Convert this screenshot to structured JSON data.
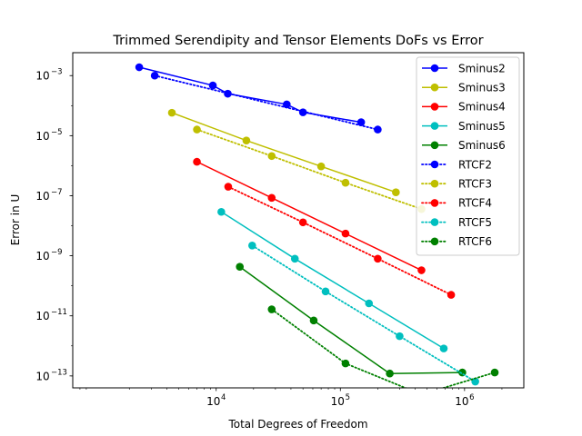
{
  "chart_data": {
    "type": "line",
    "title": "Trimmed Serendipity and Tensor Elements DoFs vs Error",
    "xlabel": "Total Degrees of Freedom",
    "ylabel": "Error in U",
    "xscale": "log",
    "yscale": "log",
    "xlim": [
      700,
      3000000
    ],
    "ylim": [
      4e-14,
      0.0058
    ],
    "xticks": [
      {
        "value": 10000,
        "base": "10",
        "exp": "4"
      },
      {
        "value": 100000,
        "base": "10",
        "exp": "5"
      },
      {
        "value": 1000000,
        "base": "10",
        "exp": "6"
      }
    ],
    "yticks": [
      {
        "value": 0.001,
        "base": "10",
        "exp": "−3"
      },
      {
        "value": 1e-05,
        "base": "10",
        "exp": "−5"
      },
      {
        "value": 1e-07,
        "base": "10",
        "exp": "−7"
      },
      {
        "value": 1e-09,
        "base": "10",
        "exp": "−9"
      },
      {
        "value": 1e-11,
        "base": "10",
        "exp": "−11"
      },
      {
        "value": 1e-13,
        "base": "10",
        "exp": "−13"
      }
    ],
    "grid": false,
    "legend_position": "top-right",
    "series": [
      {
        "name": "Sminus2",
        "color": "#0000ff",
        "style": "solid",
        "x": [
          2400,
          9400,
          12400,
          37000,
          50000,
          147000
        ],
        "y": [
          0.0019,
          0.00047,
          0.00025,
          0.00011,
          6e-05,
          2.8e-05
        ]
      },
      {
        "name": "Sminus3",
        "color": "#bfbf00",
        "style": "solid",
        "x": [
          4400,
          17500,
          70000,
          280000
        ],
        "y": [
          5.8e-05,
          6.9e-06,
          9.5e-07,
          1.3e-07
        ]
      },
      {
        "name": "Sminus4",
        "color": "#ff0000",
        "style": "solid",
        "x": [
          7000,
          28000,
          110000,
          450000
        ],
        "y": [
          1.35e-06,
          8.5e-08,
          5.5e-09,
          3.3e-10
        ]
      },
      {
        "name": "Sminus5",
        "color": "#00bfbf",
        "style": "solid",
        "x": [
          11000,
          43000,
          170000,
          680000
        ],
        "y": [
          2.9e-08,
          8e-10,
          2.6e-11,
          8.2e-13
        ]
      },
      {
        "name": "Sminus6",
        "color": "#008000",
        "style": "solid",
        "x": [
          15500,
          61000,
          250000,
          960000
        ],
        "y": [
          4.3e-10,
          7e-12,
          1.2e-13,
          1.3e-13
        ]
      },
      {
        "name": "RTCF2",
        "color": "#0000ff",
        "style": "dotted",
        "x": [
          3200,
          200000
        ],
        "y": [
          0.001,
          1.6e-05
        ]
      },
      {
        "name": "RTCF3",
        "color": "#bfbf00",
        "style": "dotted",
        "x": [
          7000,
          28000,
          110000,
          450000
        ],
        "y": [
          1.6e-05,
          2.1e-06,
          2.7e-07,
          3.6e-08
        ]
      },
      {
        "name": "RTCF4",
        "color": "#ff0000",
        "style": "dotted",
        "x": [
          12500,
          50000,
          200000,
          780000
        ],
        "y": [
          2e-07,
          1.3e-08,
          8e-10,
          5e-11
        ]
      },
      {
        "name": "RTCF5",
        "color": "#00bfbf",
        "style": "dotted",
        "x": [
          19500,
          76000,
          300000,
          1220000
        ],
        "y": [
          2.2e-09,
          6.5e-11,
          2.1e-12,
          6.5e-14
        ]
      },
      {
        "name": "RTCF6",
        "color": "#008000",
        "style": "dotted",
        "x": [
          28000,
          110000,
          450000,
          1750000
        ],
        "y": [
          1.65e-11,
          2.6e-13,
          2.4e-14,
          1.3e-13
        ]
      }
    ]
  }
}
